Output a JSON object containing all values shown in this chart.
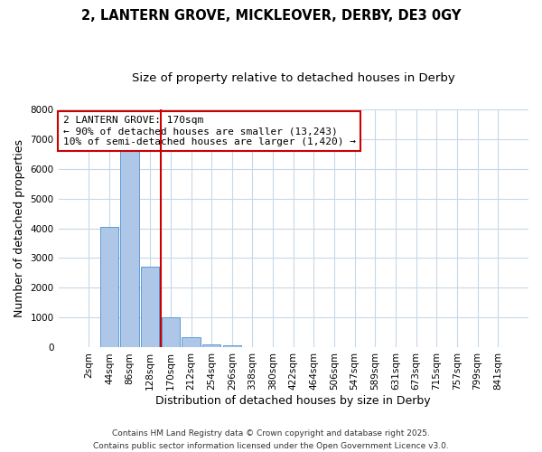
{
  "title": "2, LANTERN GROVE, MICKLEOVER, DERBY, DE3 0GY",
  "subtitle": "Size of property relative to detached houses in Derby",
  "xlabel": "Distribution of detached houses by size in Derby",
  "ylabel": "Number of detached properties",
  "bar_labels": [
    "2sqm",
    "44sqm",
    "86sqm",
    "128sqm",
    "170sqm",
    "212sqm",
    "254sqm",
    "296sqm",
    "338sqm",
    "380sqm",
    "422sqm",
    "464sqm",
    "506sqm",
    "547sqm",
    "589sqm",
    "631sqm",
    "673sqm",
    "715sqm",
    "757sqm",
    "799sqm",
    "841sqm"
  ],
  "bar_values": [
    0,
    4050,
    6650,
    2700,
    1000,
    340,
    110,
    60,
    0,
    0,
    0,
    0,
    0,
    0,
    0,
    0,
    0,
    0,
    0,
    0,
    0
  ],
  "bar_color": "#aec6e8",
  "bar_edge_color": "#5b9bd5",
  "ylim": [
    0,
    8000
  ],
  "yticks": [
    0,
    1000,
    2000,
    3000,
    4000,
    5000,
    6000,
    7000,
    8000
  ],
  "property_line_index": 4,
  "property_line_color": "#cc0000",
  "annotation_text_line1": "2 LANTERN GROVE: 170sqm",
  "annotation_text_line2": "← 90% of detached houses are smaller (13,243)",
  "annotation_text_line3": "10% of semi-detached houses are larger (1,420) →",
  "annotation_box_color": "#cc0000",
  "annotation_box_facecolor": "#ffffff",
  "footer_line1": "Contains HM Land Registry data © Crown copyright and database right 2025.",
  "footer_line2": "Contains public sector information licensed under the Open Government Licence v3.0.",
  "background_color": "#ffffff",
  "grid_color": "#c8d8e8",
  "title_fontsize": 10.5,
  "subtitle_fontsize": 9.5,
  "axis_label_fontsize": 9,
  "tick_fontsize": 7.5,
  "annotation_fontsize": 8,
  "footer_fontsize": 6.5
}
